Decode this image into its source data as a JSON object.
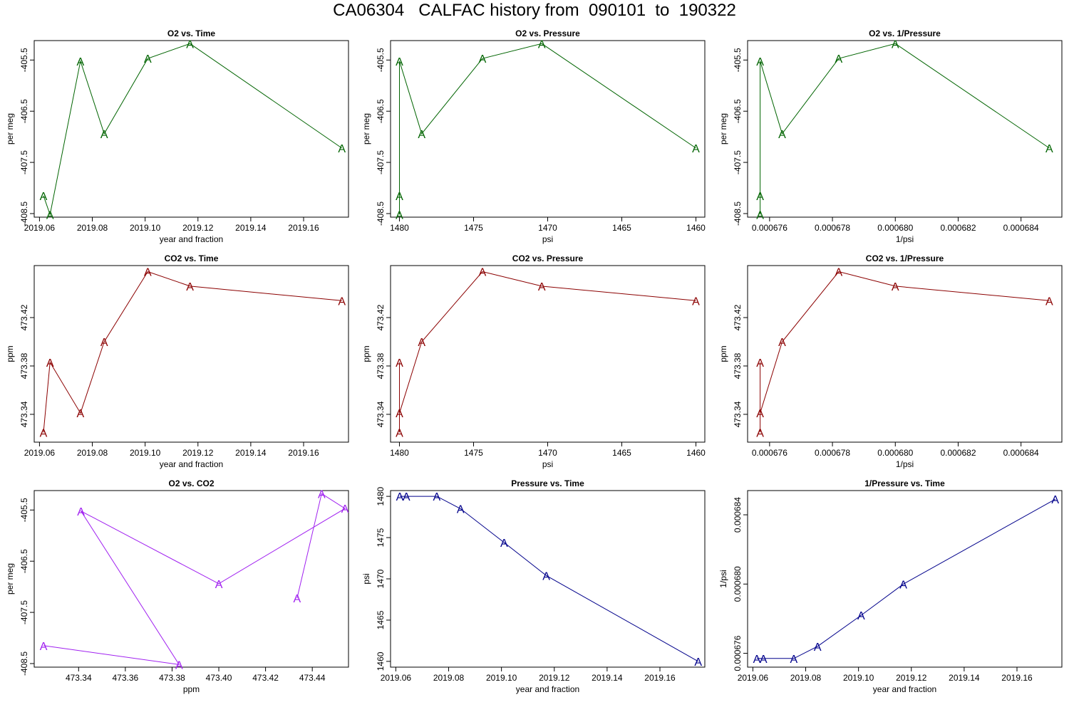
{
  "title": "CA06304   CALFAC history from  090101  to  190322",
  "colors": {
    "o2": "#006400",
    "co2": "#8b0000",
    "o2co2": "#a020f0",
    "pressure": "#00008b",
    "frame": "#000000"
  },
  "chart_data": [
    {
      "type": "line",
      "title": "O2 vs. Time",
      "xlabel": "year and fraction",
      "ylabel": "per meg",
      "color_key": "o2",
      "marker": "A",
      "xlim": [
        2019.058,
        2019.177
      ],
      "ylim": [
        -408.57,
        -405.12
      ],
      "xreverse": false,
      "xticks": [
        2019.06,
        2019.08,
        2019.1,
        2019.12,
        2019.14,
        2019.16
      ],
      "xtick_labels": [
        "2019.06",
        "2019.08",
        "2019.10",
        "2019.12",
        "2019.14",
        "2019.16"
      ],
      "yticks": [
        -408.5,
        -407.5,
        -406.5,
        -405.5
      ],
      "ytick_labels": [
        "-408.5",
        "-407.5",
        "-406.5",
        "-405.5"
      ],
      "x": [
        2019.0615,
        2019.064,
        2019.0755,
        2019.0845,
        2019.101,
        2019.117,
        2019.1745
      ],
      "y": [
        -408.15,
        -408.52,
        -405.52,
        -406.94,
        -405.47,
        -405.18,
        -407.22
      ]
    },
    {
      "type": "line",
      "title": "O2 vs. Pressure",
      "xlabel": "psi",
      "ylabel": "per meg",
      "color_key": "o2",
      "marker": "A",
      "xlim": [
        1480.6,
        1459.4
      ],
      "ylim": [
        -408.57,
        -405.12
      ],
      "xreverse": true,
      "xticks": [
        1480,
        1475,
        1470,
        1465,
        1460
      ],
      "xtick_labels": [
        "1480",
        "1475",
        "1470",
        "1465",
        "1460"
      ],
      "yticks": [
        -408.5,
        -407.5,
        -406.5,
        -405.5
      ],
      "ytick_labels": [
        "-408.5",
        "-407.5",
        "-406.5",
        "-405.5"
      ],
      "x": [
        1480,
        1480,
        1480,
        1478.5,
        1474.4,
        1470.4,
        1460
      ],
      "y": [
        -408.52,
        -408.15,
        -405.52,
        -406.94,
        -405.47,
        -405.18,
        -407.22
      ]
    },
    {
      "type": "line",
      "title": "O2 vs. 1/Pressure",
      "xlabel": "1/psi",
      "ylabel": "per meg",
      "color_key": "o2",
      "marker": "A",
      "xlim": [
        0.0006753,
        0.0006853
      ],
      "ylim": [
        -408.57,
        -405.12
      ],
      "xreverse": false,
      "xticks": [
        0.000676,
        0.000678,
        0.00068,
        0.000682,
        0.000684
      ],
      "xtick_labels": [
        "0.000676",
        "0.000678",
        "0.000680",
        "0.000682",
        "0.000684"
      ],
      "yticks": [
        -408.5,
        -407.5,
        -406.5,
        -405.5
      ],
      "ytick_labels": [
        "-408.5",
        "-407.5",
        "-406.5",
        "-405.5"
      ],
      "x": [
        0.0006757,
        0.0006757,
        0.0006757,
        0.0006764,
        0.0006782,
        0.00068,
        0.0006849
      ],
      "y": [
        -408.52,
        -408.15,
        -405.52,
        -406.94,
        -405.47,
        -405.18,
        -407.22
      ]
    },
    {
      "type": "line",
      "title": "CO2 vs. Time",
      "xlabel": "year and fraction",
      "ylabel": "ppm",
      "color_key": "co2",
      "marker": "A",
      "xlim": [
        2019.058,
        2019.177
      ],
      "ylim": [
        473.317,
        473.463
      ],
      "xreverse": false,
      "xticks": [
        2019.06,
        2019.08,
        2019.1,
        2019.12,
        2019.14,
        2019.16
      ],
      "xtick_labels": [
        "2019.06",
        "2019.08",
        "2019.10",
        "2019.12",
        "2019.14",
        "2019.16"
      ],
      "yticks": [
        473.34,
        473.38,
        473.42
      ],
      "ytick_labels": [
        "473.34",
        "473.38",
        "473.42"
      ],
      "x": [
        2019.0615,
        2019.064,
        2019.0755,
        2019.0845,
        2019.101,
        2019.117,
        2019.1745
      ],
      "y": [
        473.325,
        473.383,
        473.341,
        473.4,
        473.458,
        473.446,
        473.434
      ]
    },
    {
      "type": "line",
      "title": "CO2 vs. Pressure",
      "xlabel": "psi",
      "ylabel": "ppm",
      "color_key": "co2",
      "marker": "A",
      "xlim": [
        1480.6,
        1459.4
      ],
      "ylim": [
        473.317,
        473.463
      ],
      "xreverse": true,
      "xticks": [
        1480,
        1475,
        1470,
        1465,
        1460
      ],
      "xtick_labels": [
        "1480",
        "1475",
        "1470",
        "1465",
        "1460"
      ],
      "yticks": [
        473.34,
        473.38,
        473.42
      ],
      "ytick_labels": [
        "473.34",
        "473.38",
        "473.42"
      ],
      "x": [
        1480,
        1480,
        1480,
        1478.5,
        1474.4,
        1470.4,
        1460
      ],
      "y": [
        473.325,
        473.383,
        473.341,
        473.4,
        473.458,
        473.446,
        473.434
      ]
    },
    {
      "type": "line",
      "title": "CO2 vs. 1/Pressure",
      "xlabel": "1/psi",
      "ylabel": "ppm",
      "color_key": "co2",
      "marker": "A",
      "xlim": [
        0.0006753,
        0.0006853
      ],
      "ylim": [
        473.317,
        473.463
      ],
      "xreverse": false,
      "xticks": [
        0.000676,
        0.000678,
        0.00068,
        0.000682,
        0.000684
      ],
      "xtick_labels": [
        "0.000676",
        "0.000678",
        "0.000680",
        "0.000682",
        "0.000684"
      ],
      "yticks": [
        473.34,
        473.38,
        473.42
      ],
      "ytick_labels": [
        "473.34",
        "473.38",
        "473.42"
      ],
      "x": [
        0.0006757,
        0.0006757,
        0.0006757,
        0.0006764,
        0.0006782,
        0.00068,
        0.0006849
      ],
      "y": [
        473.325,
        473.383,
        473.341,
        473.4,
        473.458,
        473.446,
        473.434
      ]
    },
    {
      "type": "line",
      "title": "O2 vs. CO2",
      "xlabel": "ppm",
      "ylabel": "per meg",
      "color_key": "o2co2",
      "marker": "A",
      "xlim": [
        473.321,
        473.4555
      ],
      "ylim": [
        -408.57,
        -405.12
      ],
      "xreverse": false,
      "xticks": [
        473.34,
        473.36,
        473.38,
        473.4,
        473.42,
        473.44
      ],
      "xtick_labels": [
        "473.34",
        "473.36",
        "473.38",
        "473.40",
        "473.42",
        "473.44"
      ],
      "yticks": [
        -408.5,
        -407.5,
        -406.5,
        -405.5
      ],
      "ytick_labels": [
        "-408.5",
        "-407.5",
        "-406.5",
        "-405.5"
      ],
      "x": [
        473.325,
        473.383,
        473.341,
        473.4,
        473.454,
        473.444,
        473.4335
      ],
      "y": [
        -408.15,
        -408.52,
        -405.52,
        -406.94,
        -405.47,
        -405.18,
        -407.22
      ]
    },
    {
      "type": "line",
      "title": "Pressure vs. Time",
      "xlabel": "year and fraction",
      "ylabel": "psi",
      "color_key": "pressure",
      "marker": "A",
      "xlim": [
        2019.058,
        2019.177
      ],
      "ylim": [
        1459.3,
        1480.7
      ],
      "xreverse": false,
      "xticks": [
        2019.06,
        2019.08,
        2019.1,
        2019.12,
        2019.14,
        2019.16
      ],
      "xtick_labels": [
        "2019.06",
        "2019.08",
        "2019.10",
        "2019.12",
        "2019.14",
        "2019.16"
      ],
      "yticks": [
        1460,
        1465,
        1470,
        1475,
        1480
      ],
      "ytick_labels": [
        "1460",
        "1465",
        "1470",
        "1475",
        "1480"
      ],
      "x": [
        2019.0615,
        2019.064,
        2019.0755,
        2019.0845,
        2019.101,
        2019.117,
        2019.1745
      ],
      "y": [
        1480,
        1480,
        1480,
        1478.5,
        1474.4,
        1470.4,
        1460
      ]
    },
    {
      "type": "line",
      "title": "1/Pressure vs. Time",
      "xlabel": "year and fraction",
      "ylabel": "1/psi",
      "color_key": "pressure",
      "marker": "A",
      "xlim": [
        2019.058,
        2019.177
      ],
      "ylim": [
        0.0006752,
        0.0006854
      ],
      "xreverse": false,
      "xticks": [
        2019.06,
        2019.08,
        2019.1,
        2019.12,
        2019.14,
        2019.16
      ],
      "xtick_labels": [
        "2019.06",
        "2019.08",
        "2019.10",
        "2019.12",
        "2019.14",
        "2019.16"
      ],
      "yticks": [
        0.000676,
        0.00068,
        0.000684
      ],
      "ytick_labels": [
        "0.000676",
        "0.000680",
        "0.000684"
      ],
      "x": [
        2019.0615,
        2019.064,
        2019.0755,
        2019.0845,
        2019.101,
        2019.117,
        2019.1745
      ],
      "y": [
        0.0006757,
        0.0006757,
        0.0006757,
        0.0006764,
        0.0006782,
        0.00068,
        0.0006849
      ]
    }
  ]
}
